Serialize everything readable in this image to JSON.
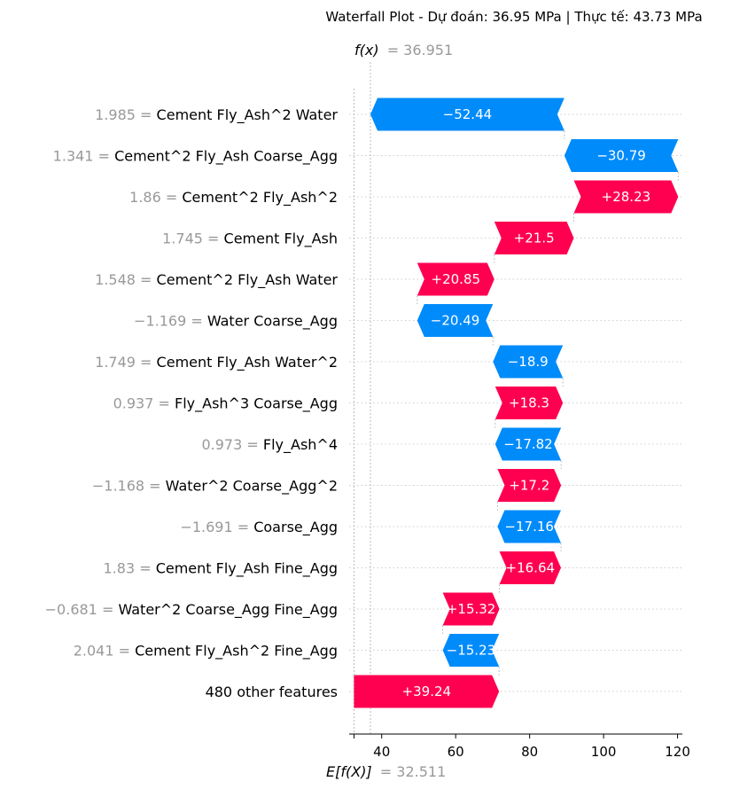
{
  "colors": {
    "positive": "#ff0051",
    "negative": "#008bfb",
    "muted": "#999999",
    "text": "#000000"
  },
  "chart_data": {
    "type": "waterfall",
    "title": "Waterfall Plot - Dự đoán: 36.95 MPa | Thực tế: 43.73 MPa",
    "fx_label": "f(x)",
    "fx_value": "= 36.951",
    "base_label": "E[f(X)]",
    "base_value": "= 32.511",
    "base": 32.511,
    "fx": 36.951,
    "xlim": [
      31.2,
      121.3
    ],
    "xticks": [
      40,
      60,
      80,
      100,
      120
    ],
    "features": [
      {
        "value": "1.985",
        "name": "Cement Fly_Ash^2 Water",
        "contribution": -52.44,
        "label": "−52.44"
      },
      {
        "value": "1.341",
        "name": "Cement^2 Fly_Ash Coarse_Agg",
        "contribution": -30.79,
        "label": "−30.79"
      },
      {
        "value": "1.86",
        "name": "Cement^2 Fly_Ash^2",
        "contribution": 28.23,
        "label": "+28.23"
      },
      {
        "value": "1.745",
        "name": "Cement Fly_Ash",
        "contribution": 21.5,
        "label": "+21.5"
      },
      {
        "value": "1.548",
        "name": "Cement^2 Fly_Ash Water",
        "contribution": 20.85,
        "label": "+20.85"
      },
      {
        "value": "−1.169",
        "name": "Water Coarse_Agg",
        "contribution": -20.49,
        "label": "−20.49"
      },
      {
        "value": "1.749",
        "name": "Cement Fly_Ash Water^2",
        "contribution": -18.9,
        "label": "−18.9"
      },
      {
        "value": "0.937",
        "name": "Fly_Ash^3 Coarse_Agg",
        "contribution": 18.3,
        "label": "+18.3"
      },
      {
        "value": "0.973",
        "name": "Fly_Ash^4",
        "contribution": -17.82,
        "label": "−17.82"
      },
      {
        "value": "−1.168",
        "name": "Water^2 Coarse_Agg^2",
        "contribution": 17.2,
        "label": "+17.2"
      },
      {
        "value": "−1.691",
        "name": "Coarse_Agg",
        "contribution": -17.16,
        "label": "−17.16"
      },
      {
        "value": "1.83",
        "name": "Cement Fly_Ash Fine_Agg",
        "contribution": 16.64,
        "label": "+16.64"
      },
      {
        "value": "−0.681",
        "name": "Water^2 Coarse_Agg Fine_Agg",
        "contribution": 15.32,
        "label": "+15.32"
      },
      {
        "value": "2.041",
        "name": "Cement Fly_Ash^2 Fine_Agg",
        "contribution": -15.23,
        "label": "−15.23"
      },
      {
        "value": "",
        "name": "480 other features",
        "contribution": 39.24,
        "label": "+39.24"
      }
    ]
  }
}
